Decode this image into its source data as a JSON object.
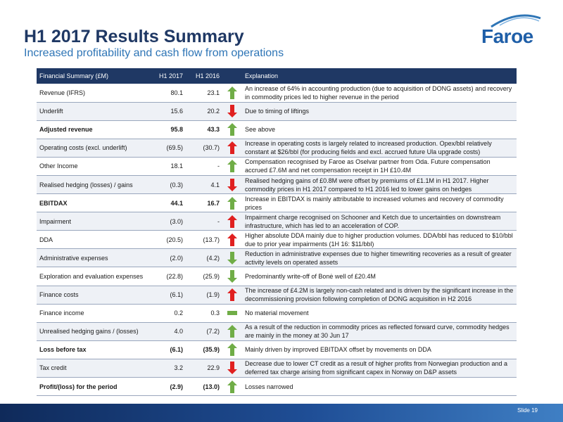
{
  "header": {
    "title": "H1 2017 Results Summary",
    "subtitle": "Increased profitability and cash flow from operations",
    "logo_text": "Faroe"
  },
  "table": {
    "headers": [
      "Financial Summary (£M)",
      "H1 2017",
      "H1 2016",
      "",
      "Explanation"
    ],
    "rows": [
      {
        "label": "Revenue (IFRS)",
        "h1_2017": "80.1",
        "h1_2016": "23.1",
        "indicator": "up-green",
        "bold": false,
        "explanation": "An increase of 64% in accounting production (due to acquisition of DONG assets) and recovery in commodity prices led to higher revenue in the period"
      },
      {
        "label": "Underlift",
        "h1_2017": "15.6",
        "h1_2016": "20.2",
        "indicator": "down-red",
        "bold": false,
        "explanation": "Due to timing of liftings"
      },
      {
        "label": "Adjusted revenue",
        "h1_2017": "95.8",
        "h1_2016": "43.3",
        "indicator": "up-green",
        "bold": true,
        "explanation": "See above"
      },
      {
        "label": "Operating costs (excl. underlift)",
        "h1_2017": "(69.5)",
        "h1_2016": "(30.7)",
        "indicator": "up-red",
        "bold": false,
        "explanation": "Increase in operating costs is largely related to increased production. Opex/bbl relatively constant at $26/bbl (for producing fields and excl. accrued future Ula upgrade costs)"
      },
      {
        "label": "Other Income",
        "h1_2017": "18.1",
        "h1_2016": "-",
        "indicator": "up-green",
        "bold": false,
        "explanation": "Compensation recognised by Faroe as Oselvar partner from Oda. Future compensation accrued £7.6M and net compensation receipt in 1H £10.4M"
      },
      {
        "label": "Realised hedging (losses) / gains",
        "h1_2017": "(0.3)",
        "h1_2016": "4.1",
        "indicator": "down-red",
        "bold": false,
        "explanation": "Realised hedging gains of £0.8M were offset by premiums of £1.1M in H1 2017. Higher commodity prices in H1 2017 compared to H1 2016 led to lower gains on hedges"
      },
      {
        "label": "EBITDAX",
        "h1_2017": "44.1",
        "h1_2016": "16.7",
        "indicator": "up-green",
        "bold": true,
        "explanation": "Increase in EBITDAX is mainly attributable to increased volumes and recovery of commodity prices"
      },
      {
        "label": "Impairment",
        "h1_2017": "(3.0)",
        "h1_2016": "-",
        "indicator": "up-red",
        "bold": false,
        "explanation": "Impairment charge recognised on Schooner and Ketch due to uncertainties on downstream infrastructure, which has led to an acceleration of COP."
      },
      {
        "label": "DDA",
        "h1_2017": "(20.5)",
        "h1_2016": "(13.7)",
        "indicator": "up-red",
        "bold": false,
        "explanation": "Higher absolute DDA mainly due to higher production volumes. DDA/bbl has reduced to $10/bbl due to prior year impairments (1H 16: $11/bbl)"
      },
      {
        "label": "Administrative expenses",
        "h1_2017": "(2.0)",
        "h1_2016": "(4.2)",
        "indicator": "down-green",
        "bold": false,
        "explanation": "Reduction in administrative expenses due to higher timewriting recoveries as a result of greater activity levels on operated assets"
      },
      {
        "label": "Exploration and evaluation expenses",
        "h1_2017": "(22.8)",
        "h1_2016": "(25.9)",
        "indicator": "down-green",
        "bold": false,
        "explanation": "Predominantly write-off of Bonė well of £20.4M"
      },
      {
        "label": "Finance costs",
        "h1_2017": "(6.1)",
        "h1_2016": "(1.9)",
        "indicator": "up-red",
        "bold": false,
        "explanation": "The increase of £4.2M is largely non-cash related and is driven by the significant increase in the decommissioning provision following completion of DONG acquisition in H2 2016"
      },
      {
        "label": "Finance income",
        "h1_2017": "0.2",
        "h1_2016": "0.3",
        "indicator": "flat-green",
        "bold": false,
        "explanation": "No material movement"
      },
      {
        "label": "Unrealised hedging gains / (losses)",
        "h1_2017": "4.0",
        "h1_2016": "(7.2)",
        "indicator": "up-green",
        "bold": false,
        "explanation": "As a result of the reduction in commodity prices as reflected forward curve, commodity hedges are mainly in the money at 30 Jun 17"
      },
      {
        "label": "Loss before tax",
        "h1_2017": "(6.1)",
        "h1_2016": "(35.9)",
        "indicator": "up-green",
        "bold": true,
        "explanation": "Mainly driven by improved EBITDAX offset by movements on DDA"
      },
      {
        "label": "Tax credit",
        "h1_2017": "3.2",
        "h1_2016": "22.9",
        "indicator": "down-red",
        "bold": false,
        "explanation": "Decrease due to lower CT credit as a result of higher profits from Norwegian production and a deferred tax charge arising from significant capex in Norway on D&P assets"
      },
      {
        "label": "Profit/(loss) for the period",
        "h1_2017": "(2.9)",
        "h1_2016": "(13.0)",
        "indicator": "up-green",
        "bold": true,
        "explanation": "Losses narrowed"
      }
    ]
  },
  "footer": {
    "slide_label": "Slide 19"
  },
  "colors": {
    "navy": "#1f3864",
    "accent": "#2e75b6",
    "up_green": "#70ad47",
    "down_red": "#e02020"
  }
}
